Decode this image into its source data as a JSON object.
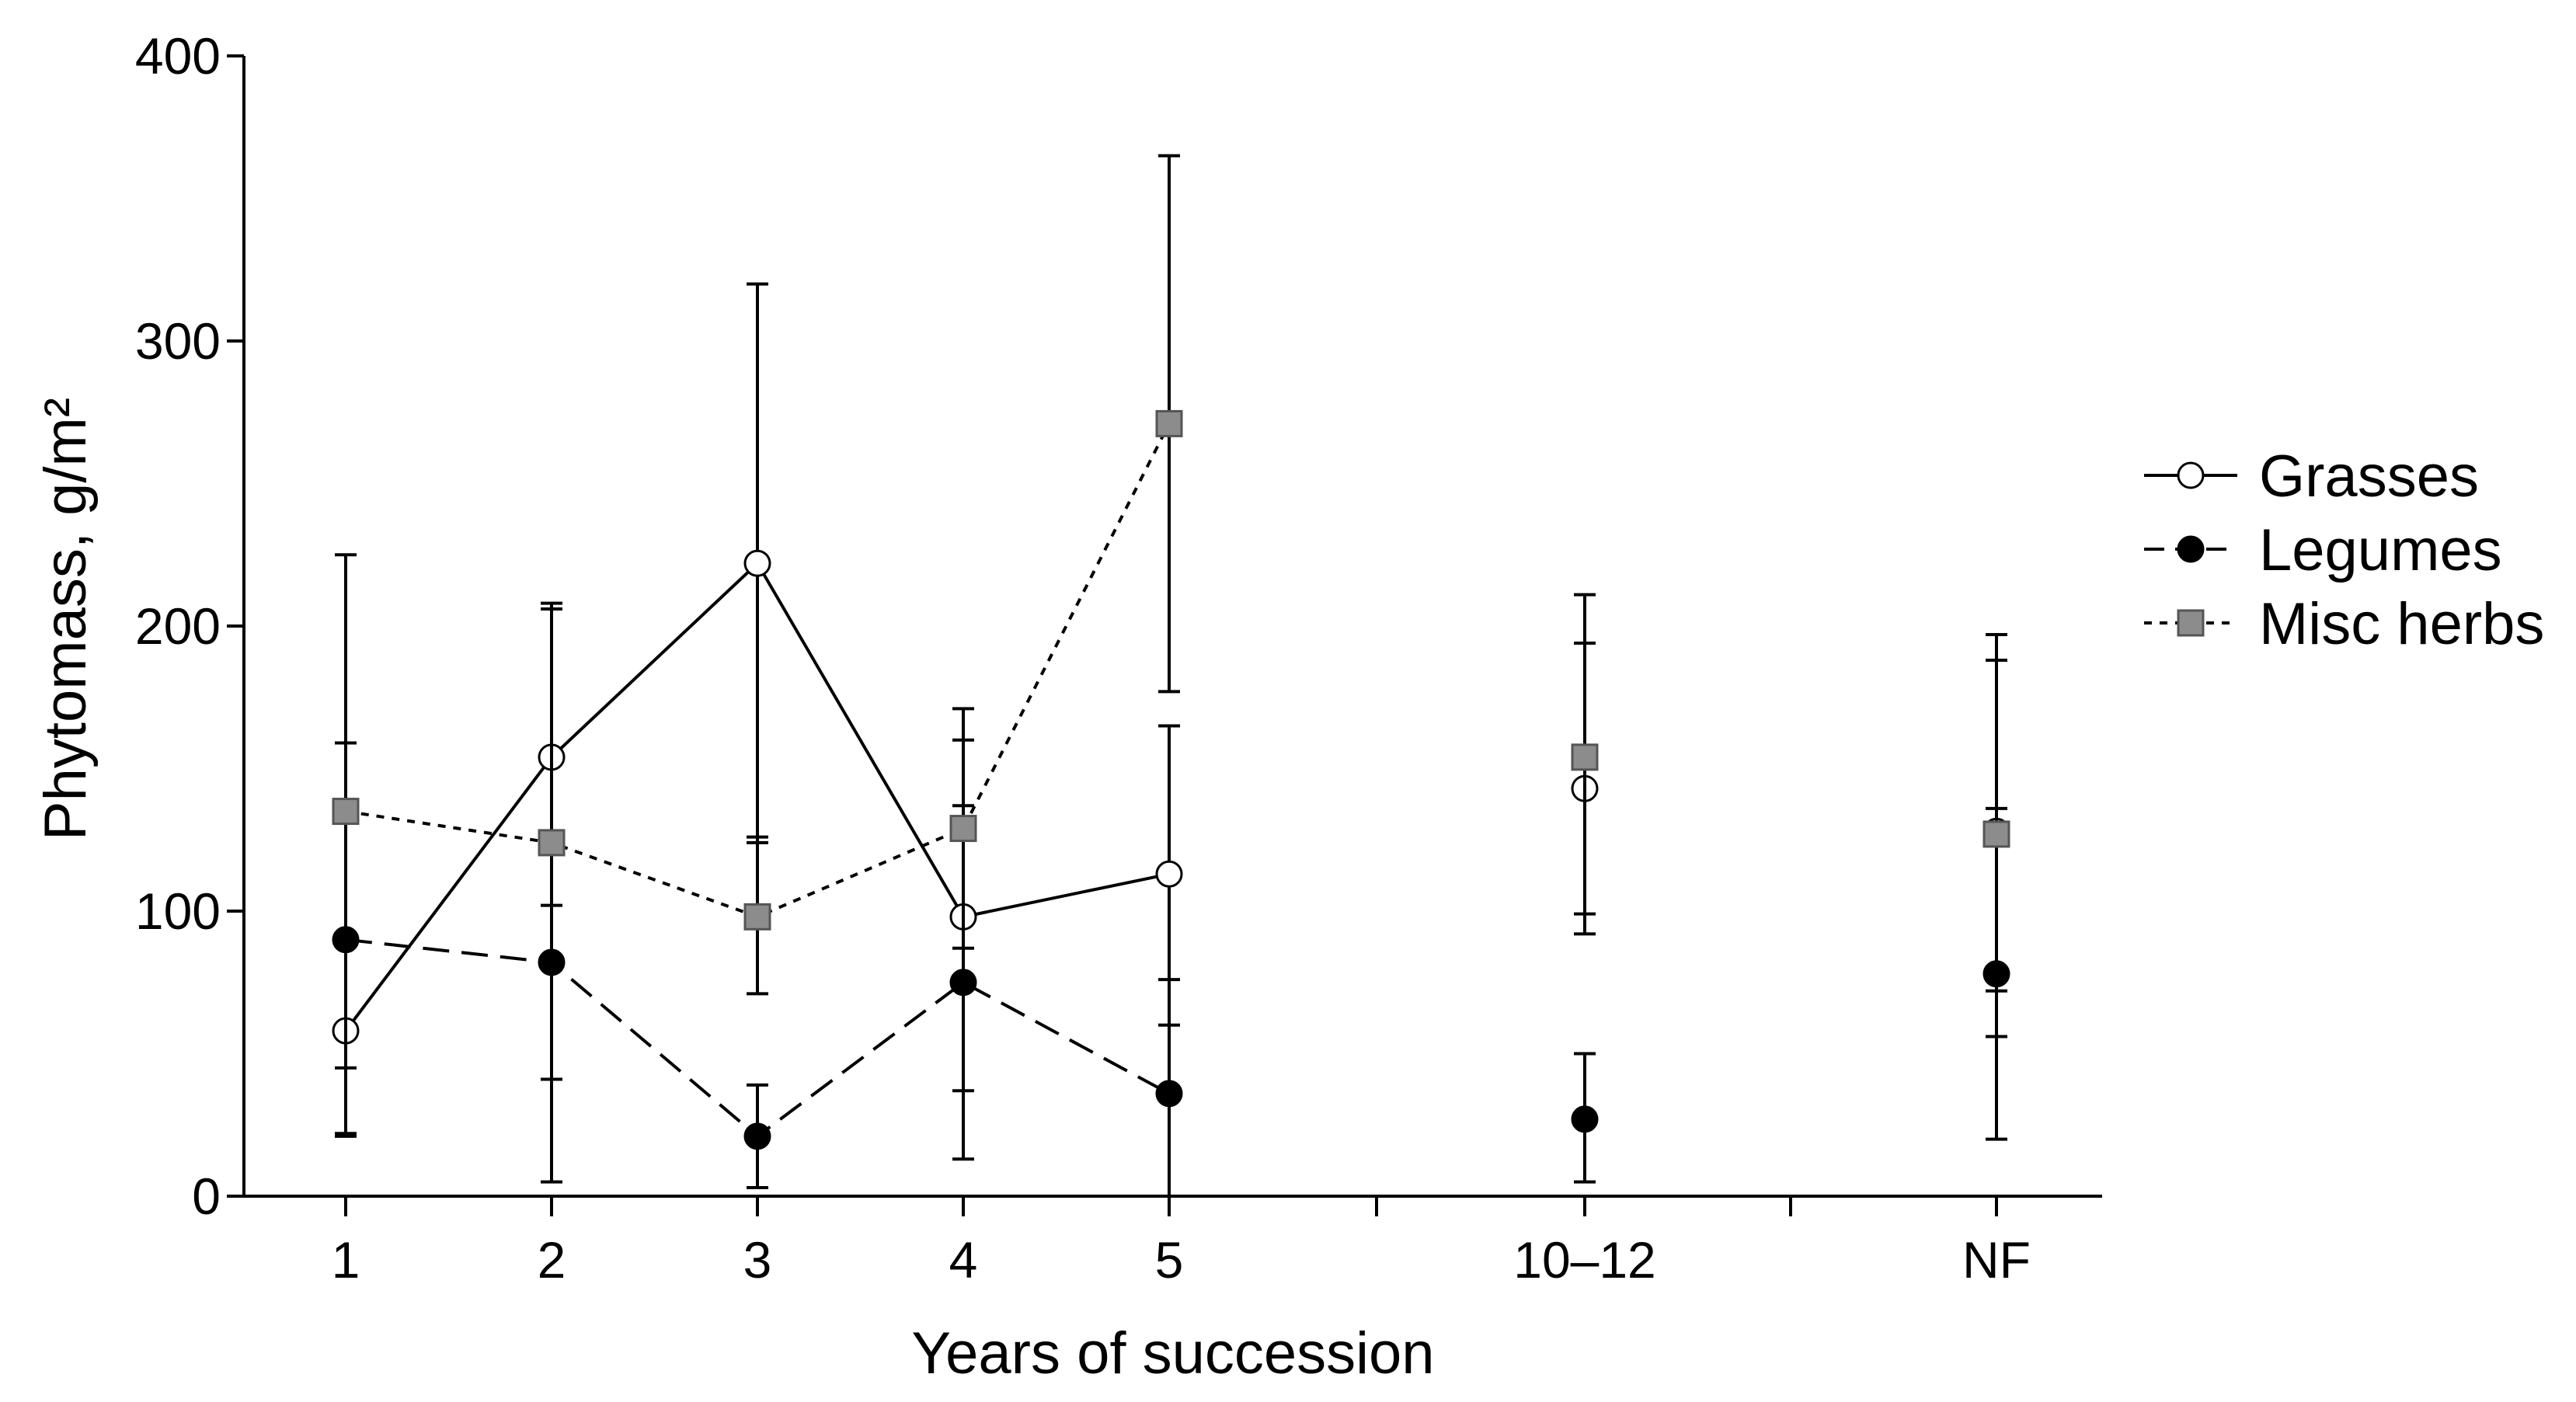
{
  "chart_data": {
    "type": "line",
    "xlabel": "Years of succession",
    "ylabel": "Phytomass, g/m²",
    "ylim": [
      0,
      400
    ],
    "yticks": [
      "0",
      "100",
      "200",
      "300",
      "400"
    ],
    "categories": [
      "1",
      "2",
      "3",
      "4",
      "5",
      "10–12",
      "NF"
    ],
    "grid": false,
    "legend_position": "right",
    "series": [
      {
        "name": "Grasses",
        "marker": "circle-open",
        "line": "solid",
        "values": [
          58,
          154,
          222,
          98,
          113,
          143,
          128
        ],
        "err_low": [
          22,
          102,
          124,
          37,
          60,
          92,
          56
        ],
        "err_high": [
          159,
          208,
          320,
          160,
          165,
          194,
          188
        ],
        "connected": [
          true,
          true,
          true,
          true,
          true,
          false,
          false
        ]
      },
      {
        "name": "Legumes",
        "marker": "circle-filled",
        "line": "dashed",
        "values": [
          90,
          82,
          21,
          75,
          36,
          27,
          78
        ],
        "err_low": [
          45,
          41,
          3,
          13,
          0,
          5,
          20
        ],
        "err_high": [
          136,
          124,
          39,
          137,
          76,
          50,
          136
        ],
        "connected": [
          true,
          true,
          true,
          true,
          true,
          false,
          false
        ]
      },
      {
        "name": "Misc herbs",
        "marker": "square-gray",
        "line": "dotted",
        "values": [
          135,
          124,
          98,
          129,
          271,
          154,
          127
        ],
        "err_low": [
          21,
          5,
          71,
          87,
          177,
          99,
          72
        ],
        "err_high": [
          225,
          206,
          126,
          171,
          365,
          211,
          197
        ],
        "connected": [
          true,
          true,
          true,
          true,
          true,
          false,
          false
        ]
      }
    ]
  },
  "colors": {
    "axis": "#000000",
    "open_marker_fill": "#ffffff",
    "filled_marker_fill": "#000000",
    "square_marker_fill": "#8c8c8c"
  }
}
